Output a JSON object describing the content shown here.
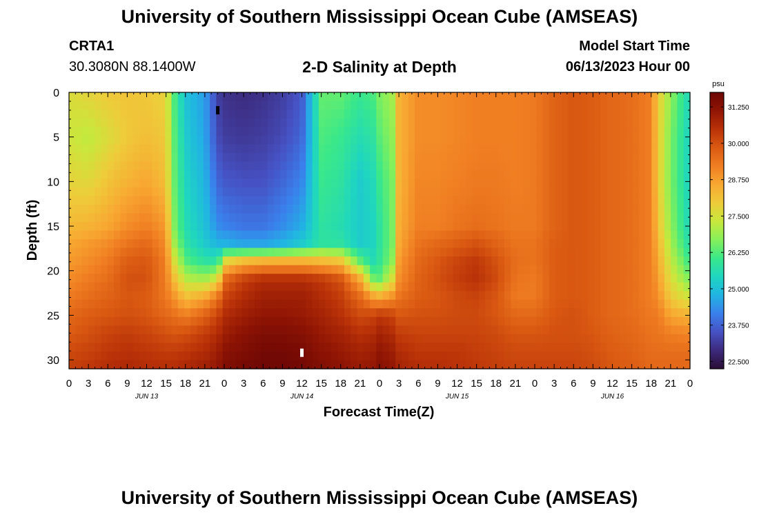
{
  "header": {
    "title": "University of Southern Mississippi Ocean Cube (AMSEAS)",
    "station": "CRTA1",
    "coords": "30.3080N  88.1400W",
    "model_label": "Model Start Time",
    "model_date": "06/13/2023 Hour 00"
  },
  "footer": {
    "title": "University of Southern Mississippi Ocean Cube (AMSEAS)"
  },
  "chart_data": {
    "type": "heatmap",
    "title": "2-D Salinity at Depth",
    "xlabel": "Forecast Time(Z)",
    "ylabel": "Depth (ft)",
    "xlim": [
      0,
      96
    ],
    "ylim": [
      31,
      0
    ],
    "x_ticks": [
      "0",
      "3",
      "6",
      "9",
      "12",
      "15",
      "18",
      "21",
      "0",
      "3",
      "6",
      "9",
      "12",
      "15",
      "18",
      "21",
      "0",
      "3",
      "6",
      "9",
      "12",
      "15",
      "18",
      "21",
      "0",
      "3",
      "6",
      "9",
      "12",
      "15",
      "18",
      "21",
      "0"
    ],
    "date_labels": [
      {
        "label": "JUN 13",
        "hour": 12
      },
      {
        "label": "JUN 14",
        "hour": 36
      },
      {
        "label": "JUN 15",
        "hour": 60
      },
      {
        "label": "JUN 16",
        "hour": 84
      }
    ],
    "y_ticks": [
      0,
      5,
      10,
      15,
      20,
      25,
      30
    ],
    "colorbar": {
      "unit": "psu",
      "min": 22.25,
      "max": 31.75,
      "ticks": [
        "31.250",
        "30.000",
        "28.750",
        "27.500",
        "26.250",
        "25.000",
        "23.750",
        "22.500"
      ],
      "colors": [
        "#2a0d34",
        "#3c2a7c",
        "#4652c4",
        "#3a80ec",
        "#21b4e3",
        "#1fd6c0",
        "#3ae88a",
        "#86f05a",
        "#c8e83c",
        "#eecc3a",
        "#f8a832",
        "#f07e22",
        "#da5a12",
        "#b93208",
        "#901504",
        "#6c0604"
      ]
    },
    "depth_profile_grid": {
      "depths_ft": [
        0,
        5,
        10,
        15,
        17,
        19,
        21,
        23,
        25,
        27,
        29,
        31
      ],
      "hours": [
        0,
        3,
        6,
        9,
        12,
        15,
        16,
        18,
        21,
        23,
        24,
        27,
        30,
        33,
        36,
        39,
        42,
        45,
        47,
        48,
        50,
        51,
        54,
        57,
        60,
        63,
        66,
        69,
        72,
        75,
        78,
        81,
        84,
        87,
        90,
        91,
        93,
        96
      ],
      "salinity_psu": [
        [
          27.6,
          27.4,
          27.8,
          28.3,
          28.6,
          28.8,
          29.0,
          29.3,
          29.6,
          29.8,
          30.1,
          30.3
        ],
        [
          27.8,
          27.2,
          27.7,
          28.4,
          28.8,
          29.0,
          29.3,
          29.5,
          29.8,
          30.0,
          30.2,
          30.4
        ],
        [
          28.0,
          27.6,
          28.1,
          28.6,
          29.0,
          29.3,
          29.5,
          29.7,
          29.9,
          30.2,
          30.4,
          30.6
        ],
        [
          28.1,
          28.0,
          28.4,
          29.0,
          29.4,
          29.8,
          30.0,
          29.9,
          30.0,
          30.3,
          30.5,
          30.7
        ],
        [
          28.0,
          28.2,
          28.6,
          29.2,
          29.6,
          29.9,
          30.0,
          29.8,
          29.9,
          30.2,
          30.4,
          30.6
        ],
        [
          27.8,
          28.0,
          28.2,
          28.8,
          29.0,
          29.2,
          29.2,
          29.3,
          29.6,
          30.0,
          30.3,
          30.6
        ],
        [
          26.4,
          26.5,
          26.6,
          26.8,
          27.2,
          27.8,
          28.4,
          29.0,
          29.5,
          29.9,
          30.3,
          30.6
        ],
        [
          25.0,
          25.2,
          25.4,
          25.6,
          25.8,
          26.3,
          27.2,
          28.2,
          29.2,
          30.0,
          30.4,
          30.7
        ],
        [
          24.5,
          24.6,
          24.8,
          25.0,
          25.2,
          25.8,
          27.0,
          28.6,
          29.7,
          30.3,
          30.6,
          30.9
        ],
        [
          23.2,
          23.4,
          23.8,
          24.3,
          24.8,
          25.8,
          27.6,
          29.4,
          30.2,
          30.6,
          30.9,
          31.1
        ],
        [
          23.0,
          23.2,
          23.6,
          24.2,
          24.8,
          27.8,
          29.6,
          30.2,
          30.6,
          30.9,
          31.2,
          31.4
        ],
        [
          22.9,
          23.1,
          23.5,
          24.0,
          24.6,
          28.4,
          30.3,
          30.6,
          30.9,
          31.2,
          31.4,
          31.6
        ],
        [
          23.0,
          23.2,
          23.5,
          24.0,
          24.6,
          28.6,
          30.6,
          30.9,
          31.1,
          31.4,
          31.6,
          31.7
        ],
        [
          23.2,
          23.4,
          23.8,
          24.3,
          24.8,
          28.6,
          30.6,
          30.9,
          31.1,
          31.4,
          31.6,
          31.7
        ],
        [
          23.6,
          23.8,
          24.2,
          24.7,
          25.2,
          28.6,
          30.6,
          30.9,
          31.0,
          31.3,
          31.5,
          31.6
        ],
        [
          26.4,
          26.2,
          26.0,
          25.8,
          25.8,
          28.4,
          30.4,
          30.6,
          30.8,
          31.0,
          31.2,
          31.4
        ],
        [
          26.4,
          26.0,
          25.8,
          25.6,
          25.8,
          28.2,
          30.0,
          30.3,
          30.5,
          30.8,
          31.0,
          31.2
        ],
        [
          26.0,
          25.6,
          25.2,
          25.2,
          25.2,
          26.4,
          28.6,
          29.6,
          30.1,
          30.5,
          30.8,
          31.0
        ],
        [
          26.2,
          25.8,
          25.5,
          25.4,
          25.4,
          25.6,
          26.6,
          28.8,
          30.2,
          30.6,
          30.9,
          31.1
        ],
        [
          26.6,
          26.3,
          26.0,
          25.8,
          25.8,
          25.9,
          26.4,
          28.6,
          30.4,
          30.8,
          31.1,
          31.3
        ],
        [
          27.0,
          26.8,
          26.6,
          26.6,
          26.6,
          26.8,
          27.6,
          29.0,
          30.2,
          30.6,
          30.9,
          31.1
        ],
        [
          28.4,
          28.4,
          28.4,
          28.5,
          28.6,
          28.8,
          29.0,
          29.4,
          29.9,
          30.3,
          30.6,
          30.8
        ],
        [
          29.0,
          29.0,
          29.1,
          29.2,
          29.4,
          29.6,
          29.7,
          29.8,
          30.0,
          30.2,
          30.4,
          30.6
        ],
        [
          29.0,
          29.0,
          29.1,
          29.2,
          29.6,
          29.9,
          30.0,
          29.9,
          30.0,
          30.2,
          30.4,
          30.6
        ],
        [
          29.1,
          29.1,
          29.2,
          29.4,
          29.8,
          30.2,
          30.3,
          30.1,
          30.1,
          30.2,
          30.4,
          30.5
        ],
        [
          29.2,
          29.2,
          29.3,
          29.5,
          30.0,
          30.4,
          30.5,
          30.2,
          30.1,
          30.2,
          30.3,
          30.4
        ],
        [
          29.2,
          29.2,
          29.3,
          29.4,
          29.7,
          30.0,
          30.1,
          29.9,
          29.9,
          30.1,
          30.2,
          30.3
        ],
        [
          29.2,
          29.2,
          29.2,
          29.3,
          29.4,
          29.5,
          29.4,
          29.3,
          29.6,
          29.9,
          30.1,
          30.2
        ],
        [
          29.3,
          29.3,
          29.3,
          29.3,
          29.4,
          29.4,
          29.3,
          29.3,
          29.6,
          29.9,
          30.1,
          30.2
        ],
        [
          29.7,
          29.7,
          29.7,
          29.7,
          29.8,
          29.8,
          29.8,
          29.8,
          29.9,
          30.0,
          30.1,
          30.2
        ],
        [
          29.9,
          29.9,
          29.9,
          29.9,
          29.9,
          29.9,
          29.9,
          29.9,
          30.0,
          30.0,
          30.1,
          30.2
        ],
        [
          29.8,
          29.8,
          29.8,
          29.8,
          29.8,
          29.8,
          29.8,
          29.8,
          29.8,
          29.9,
          30.0,
          30.1
        ],
        [
          29.6,
          29.6,
          29.6,
          29.6,
          29.6,
          29.6,
          29.6,
          29.6,
          29.6,
          29.7,
          29.8,
          29.9
        ],
        [
          29.5,
          29.5,
          29.5,
          29.5,
          29.5,
          29.5,
          29.5,
          29.5,
          29.5,
          29.6,
          29.7,
          29.8
        ],
        [
          29.2,
          29.2,
          29.2,
          29.2,
          29.2,
          29.2,
          29.2,
          29.2,
          29.3,
          29.4,
          29.5,
          29.6
        ],
        [
          28.0,
          28.0,
          28.0,
          28.2,
          28.4,
          28.6,
          28.8,
          29.0,
          29.3,
          29.4,
          29.5,
          29.6
        ],
        [
          26.8,
          26.6,
          26.6,
          26.8,
          27.0,
          27.3,
          27.6,
          28.0,
          28.6,
          29.2,
          29.5,
          29.6
        ],
        [
          25.4,
          25.3,
          25.3,
          25.4,
          25.6,
          26.0,
          26.6,
          27.4,
          28.4,
          29.1,
          29.5,
          29.6
        ]
      ]
    },
    "markers": [
      {
        "hour": 23,
        "depth_ft": 2.0,
        "color": "#000000"
      },
      {
        "hour": 36,
        "depth_ft": 29.2,
        "color": "#ffffff"
      }
    ]
  }
}
